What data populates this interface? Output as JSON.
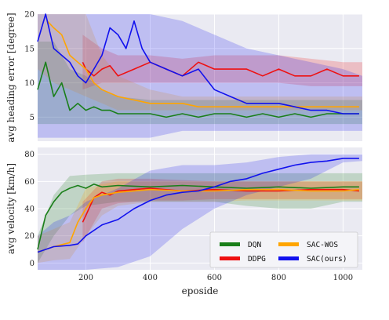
{
  "chart_data": [
    {
      "type": "line",
      "ylabel": "avg heading error [degree]",
      "xlim": [
        50,
        1060
      ],
      "ylim": [
        1.5,
        20
      ],
      "yticks": [
        5,
        10,
        15,
        20
      ],
      "series": [
        {
          "name": "DQN",
          "color": "#1a7f1a",
          "x": [
            50,
            75,
            100,
            125,
            150,
            175,
            200,
            225,
            250,
            275,
            300,
            350,
            400,
            450,
            500,
            550,
            600,
            650,
            700,
            750,
            800,
            850,
            900,
            950,
            1000,
            1050
          ],
          "y": [
            9,
            13,
            8,
            10,
            6,
            7,
            6,
            6.5,
            6,
            6,
            5.5,
            5.5,
            5.5,
            5,
            5.5,
            5,
            5.5,
            5.5,
            5,
            5.5,
            5,
            5.5,
            5,
            5.5,
            5.5,
            5.5
          ]
        },
        {
          "name": "DDPG",
          "color": "#ee1111",
          "x": [
            190,
            200,
            225,
            250,
            275,
            300,
            350,
            400,
            450,
            500,
            550,
            600,
            650,
            700,
            750,
            800,
            850,
            900,
            950,
            1000,
            1050
          ],
          "y": [
            13,
            12,
            11,
            12,
            12.5,
            11,
            12,
            13,
            12,
            11,
            13,
            12,
            12,
            12,
            11,
            12,
            11,
            11,
            12,
            11,
            11
          ]
        },
        {
          "name": "SAC-WOS",
          "color": "#ffa500",
          "x": [
            80,
            100,
            125,
            150,
            175,
            200,
            225,
            250,
            275,
            300,
            350,
            400,
            450,
            500,
            550,
            600,
            650,
            700,
            750,
            800,
            850,
            900,
            950,
            1000,
            1050
          ],
          "y": [
            19,
            18,
            17,
            14,
            13,
            12,
            10,
            9,
            8.5,
            8,
            7.5,
            7,
            7,
            7,
            6.5,
            6.5,
            6.5,
            6.5,
            6.5,
            6.5,
            6.5,
            6.5,
            6.5,
            6.5,
            6.5
          ]
        },
        {
          "name": "SAC(ours)",
          "color": "#1111ee",
          "x": [
            50,
            75,
            100,
            125,
            150,
            175,
            200,
            225,
            250,
            275,
            300,
            325,
            350,
            375,
            400,
            450,
            500,
            550,
            600,
            650,
            700,
            750,
            800,
            850,
            900,
            950,
            1000,
            1050
          ],
          "y": [
            16,
            20,
            15,
            14,
            13,
            11,
            10,
            12,
            14,
            18,
            17,
            15,
            19,
            15,
            13,
            12,
            11,
            12,
            9,
            8,
            7,
            7,
            7,
            6.5,
            6,
            6,
            5.5,
            5.5
          ]
        }
      ],
      "bands": [
        {
          "color": "#1a7f1a",
          "x": [
            50,
            100,
            150,
            200,
            250,
            300,
            400,
            500,
            600,
            700,
            800,
            900,
            1000,
            1060
          ],
          "lo": [
            4,
            4,
            4,
            4,
            4,
            4,
            4,
            4,
            4,
            4,
            4,
            4,
            4,
            4
          ],
          "hi": [
            16,
            16,
            12,
            11,
            9,
            8,
            7.5,
            7.5,
            7.5,
            7.5,
            7.5,
            7.5,
            7.5,
            7.5
          ]
        },
        {
          "color": "#ee1111",
          "x": [
            190,
            250,
            300,
            400,
            500,
            600,
            700,
            800,
            900,
            1000,
            1060
          ],
          "lo": [
            9,
            10,
            10,
            10,
            10,
            10,
            10,
            10,
            9.5,
            9.5,
            9.5
          ],
          "hi": [
            17,
            15,
            14,
            14,
            13.5,
            14,
            14,
            14,
            13.5,
            13,
            13
          ]
        },
        {
          "color": "#ffa500",
          "x": [
            50,
            100,
            150,
            200,
            250,
            300,
            400,
            500,
            600,
            700,
            800,
            900,
            1000,
            1060
          ],
          "lo": [
            12,
            10,
            9,
            8,
            7,
            6,
            6,
            6,
            6,
            6,
            6,
            6,
            6,
            6
          ],
          "hi": [
            20,
            20,
            20,
            20,
            14,
            11,
            9,
            8,
            8,
            8,
            8,
            8,
            8,
            8
          ]
        },
        {
          "color": "#1111ee",
          "x": [
            50,
            100,
            150,
            200,
            250,
            300,
            400,
            500,
            600,
            700,
            800,
            900,
            1000,
            1060
          ],
          "lo": [
            2,
            2,
            2,
            2,
            2,
            2,
            2,
            3,
            3,
            3,
            3,
            3,
            3,
            3
          ],
          "hi": [
            20,
            20,
            20,
            20,
            20,
            20,
            20,
            19,
            17,
            15,
            14,
            13,
            12,
            11
          ]
        }
      ]
    },
    {
      "type": "line",
      "xlabel": "eposide",
      "ylabel": "avg velocity [km/h]",
      "xlim": [
        50,
        1060
      ],
      "ylim": [
        -5,
        85
      ],
      "xticks": [
        200,
        400,
        600,
        800,
        1000
      ],
      "yticks": [
        0,
        20,
        40,
        60,
        80
      ],
      "series": [
        {
          "name": "DQN",
          "color": "#1a7f1a",
          "x": [
            50,
            75,
            100,
            125,
            150,
            175,
            200,
            225,
            250,
            300,
            400,
            500,
            600,
            700,
            800,
            900,
            1000,
            1050
          ],
          "y": [
            10,
            35,
            45,
            52,
            55,
            57,
            55,
            58,
            56,
            57,
            56,
            57,
            56,
            55,
            56,
            55,
            56,
            56
          ]
        },
        {
          "name": "DDPG",
          "color": "#ee1111",
          "x": [
            190,
            200,
            225,
            250,
            275,
            300,
            350,
            400,
            500,
            600,
            700,
            800,
            900,
            1000,
            1050
          ],
          "y": [
            30,
            35,
            48,
            52,
            50,
            53,
            54,
            55,
            53,
            54,
            53,
            53,
            54,
            54,
            53
          ]
        },
        {
          "name": "SAC-WOS",
          "color": "#ffa500",
          "x": [
            50,
            100,
            150,
            175,
            200,
            225,
            250,
            300,
            400,
            500,
            600,
            700,
            800,
            900,
            1000,
            1050
          ],
          "y": [
            8,
            12,
            15,
            30,
            40,
            48,
            50,
            52,
            54,
            53,
            53,
            54,
            54,
            53,
            53,
            54
          ]
        },
        {
          "name": "SAC(ours)",
          "color": "#1111ee",
          "x": [
            50,
            100,
            150,
            175,
            200,
            250,
            300,
            350,
            400,
            450,
            500,
            550,
            600,
            650,
            700,
            750,
            800,
            850,
            900,
            950,
            1000,
            1050
          ],
          "y": [
            8,
            12,
            13,
            14,
            20,
            28,
            32,
            40,
            46,
            50,
            52,
            53,
            56,
            60,
            62,
            66,
            69,
            72,
            74,
            75,
            77,
            77
          ]
        }
      ],
      "bands": [
        {
          "color": "#1a7f1a",
          "x": [
            50,
            100,
            150,
            200,
            300,
            400,
            500,
            600,
            700,
            800,
            900,
            1000,
            1060
          ],
          "lo": [
            0,
            20,
            35,
            42,
            45,
            45,
            45,
            45,
            42,
            40,
            40,
            45,
            45
          ],
          "hi": [
            20,
            50,
            64,
            65,
            66,
            66,
            66,
            66,
            66,
            66,
            66,
            66,
            66
          ]
        },
        {
          "color": "#ee1111",
          "x": [
            190,
            250,
            300,
            400,
            500,
            600,
            700,
            800,
            900,
            1000,
            1060
          ],
          "lo": [
            15,
            40,
            44,
            46,
            46,
            47,
            47,
            47,
            47,
            47,
            47
          ],
          "hi": [
            45,
            60,
            62,
            62,
            61,
            60,
            60,
            60,
            60,
            60,
            60
          ]
        },
        {
          "color": "#ffa500",
          "x": [
            50,
            100,
            150,
            200,
            250,
            300,
            400,
            500,
            600,
            700,
            800,
            900,
            1000,
            1060
          ],
          "lo": [
            0,
            2,
            3,
            20,
            35,
            42,
            45,
            45,
            45,
            46,
            46,
            46,
            46,
            46
          ],
          "hi": [
            20,
            25,
            30,
            55,
            58,
            60,
            60,
            60,
            60,
            60,
            60,
            60,
            60,
            60
          ]
        },
        {
          "color": "#1111ee",
          "x": [
            50,
            100,
            150,
            200,
            300,
            400,
            500,
            600,
            700,
            800,
            900,
            1000,
            1060
          ],
          "lo": [
            -5,
            -5,
            -5,
            -5,
            -3,
            5,
            25,
            40,
            50,
            56,
            62,
            74,
            75
          ],
          "hi": [
            20,
            30,
            35,
            45,
            55,
            68,
            72,
            72,
            74,
            78,
            80,
            80,
            80
          ]
        }
      ]
    }
  ],
  "legend": {
    "placement": "bottom-right",
    "entries": [
      {
        "label": "DQN",
        "color": "#1a7f1a"
      },
      {
        "label": "SAC-WOS",
        "color": "#ffa500"
      },
      {
        "label": "DDPG",
        "color": "#ee1111"
      },
      {
        "label": "SAC(ours)",
        "color": "#1111ee"
      }
    ]
  }
}
